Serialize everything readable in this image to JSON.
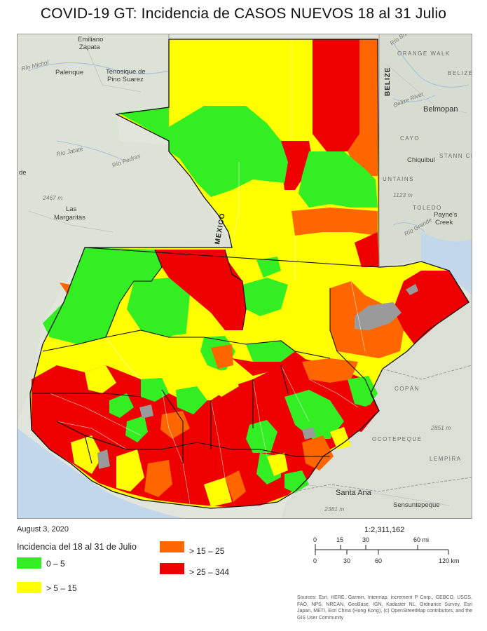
{
  "title": "COVID-19 GT: Incidencia de CASOS NUEVOS 18 al 31 Julio",
  "date": "August 3, 2020",
  "legend": {
    "title": "Incidencia del 18 al 31 de Julio",
    "items": [
      {
        "label": "0 – 5",
        "color": "#33ee22"
      },
      {
        "label": "> 5 – 15",
        "color": "#ffff00"
      },
      {
        "label": "> 15 – 25",
        "color": "#ff6600"
      },
      {
        "label": "> 25 – 344",
        "color": "#ee0000"
      }
    ]
  },
  "no_data_color": "#9a9a9a",
  "scale": {
    "ratio": "1:2,311,162",
    "mi_ticks": [
      "0",
      "15",
      "30",
      "60 mi"
    ],
    "km_ticks": [
      "0",
      "30",
      "60",
      "120 km"
    ]
  },
  "sources": "Sources: Esri, HERE, Garmin, Intermap, increment P Corp., GEBCO, USGS, FAO, NPS, NRCAN, GeoBase, IGN, Kadaster NL, Ordnance Survey, Esri Japan, METI, Esri China (Hong Kong), (c) OpenStreetMap contributors, and the GIS User Community",
  "basemap_labels": {
    "emiliano": "Emiliano",
    "zapata": "Zapata",
    "palenque": "Palenque",
    "tenosique_1": "Tenosique de",
    "tenosique_2": "Pino Suarez",
    "belmopan": "Belmopan",
    "orange_walk": "ORANGE WALK",
    "belize_district": "BELIZE",
    "belize_country": "BELIZE",
    "mexico": "MEXICO",
    "las": "Las",
    "margaritas": "Margaritas",
    "elev_2467": "2467 m",
    "elev_1123": "1123 m",
    "elev_2851": "2851 m",
    "elev_2381": "2381 m",
    "chiquibul": "Chiquibul",
    "cayo": "CAYO",
    "mountains": "UNTAINS",
    "toledo": "TOLEDO",
    "paynes_1": "Payne's",
    "paynes_2": "Creek",
    "stann": "STANN CREE",
    "santa_ana": "Santa Ana",
    "sensuntepeque": "Sensuntepeque",
    "copan": "COPÁN",
    "ocotepeque": "OCOTEPEQUE",
    "lempira": "LEMPIRA",
    "rio_michol": "Río Michol",
    "rio_pedras": "Río Pedras",
    "rio_jatate": "Río Jataté",
    "belize_river": "Belize River",
    "rio_bravo": "Río Bravo",
    "rio_grande": "Río Grande",
    "de": "de"
  }
}
